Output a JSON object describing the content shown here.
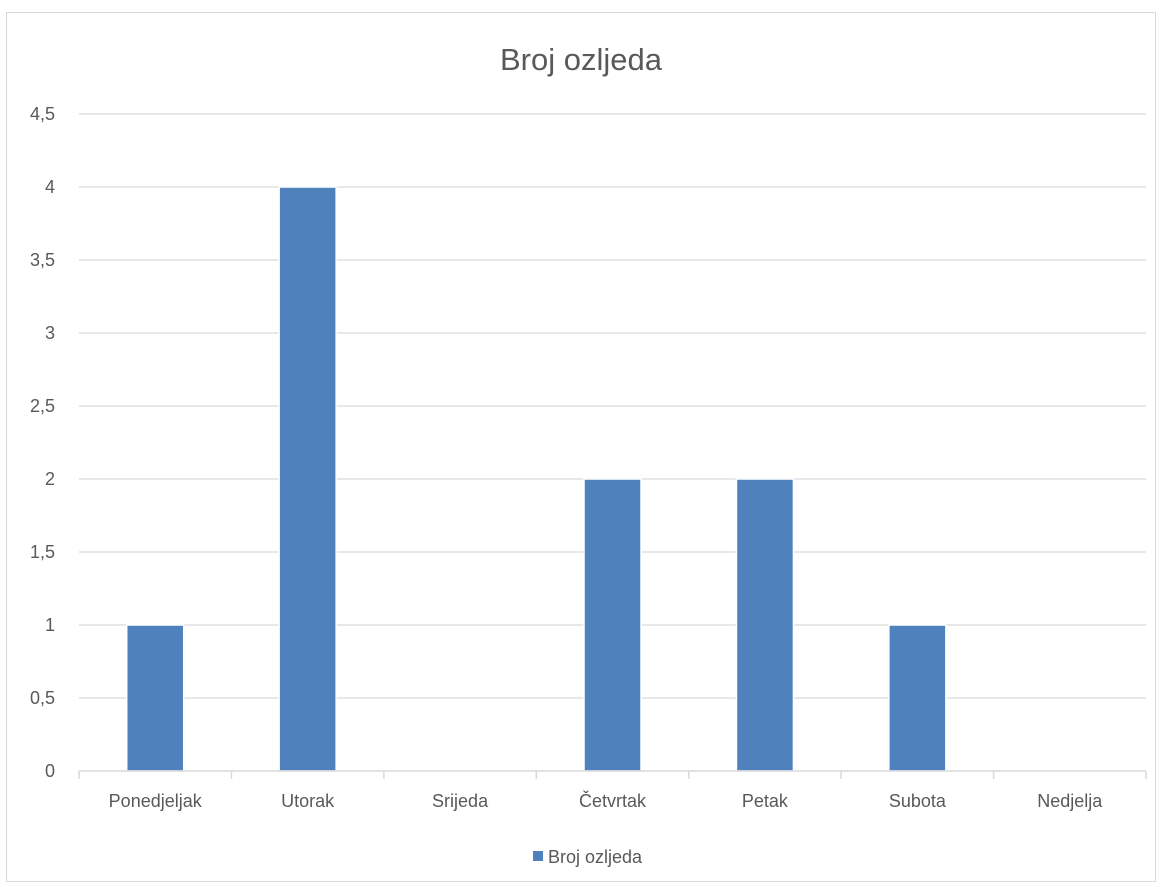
{
  "chart_data": {
    "type": "bar",
    "title": "Broj ozljeda",
    "xlabel": "",
    "ylabel": "",
    "categories": [
      "Ponedjeljak",
      "Utorak",
      "Srijeda",
      "Četvrtak",
      "Petak",
      "Subota",
      "Nedjelja"
    ],
    "series": [
      {
        "name": "Broj ozljeda",
        "values": [
          1,
          4,
          0,
          2,
          2,
          1,
          0
        ],
        "color": "#4f81bd"
      }
    ],
    "ylim": [
      0,
      4.5
    ],
    "y_ticks": [
      "0",
      "0,5",
      "1",
      "1,5",
      "2",
      "2,5",
      "3",
      "3,5",
      "4",
      "4,5"
    ],
    "y_tick_values": [
      0,
      0.5,
      1,
      1.5,
      2,
      2.5,
      3,
      3.5,
      4,
      4.5
    ],
    "grid": true,
    "legend_position": "bottom",
    "colors": {
      "bar": "#4f81bd",
      "grid": "#d9d9d9",
      "text": "#595959",
      "border": "#d9d9d9"
    }
  }
}
